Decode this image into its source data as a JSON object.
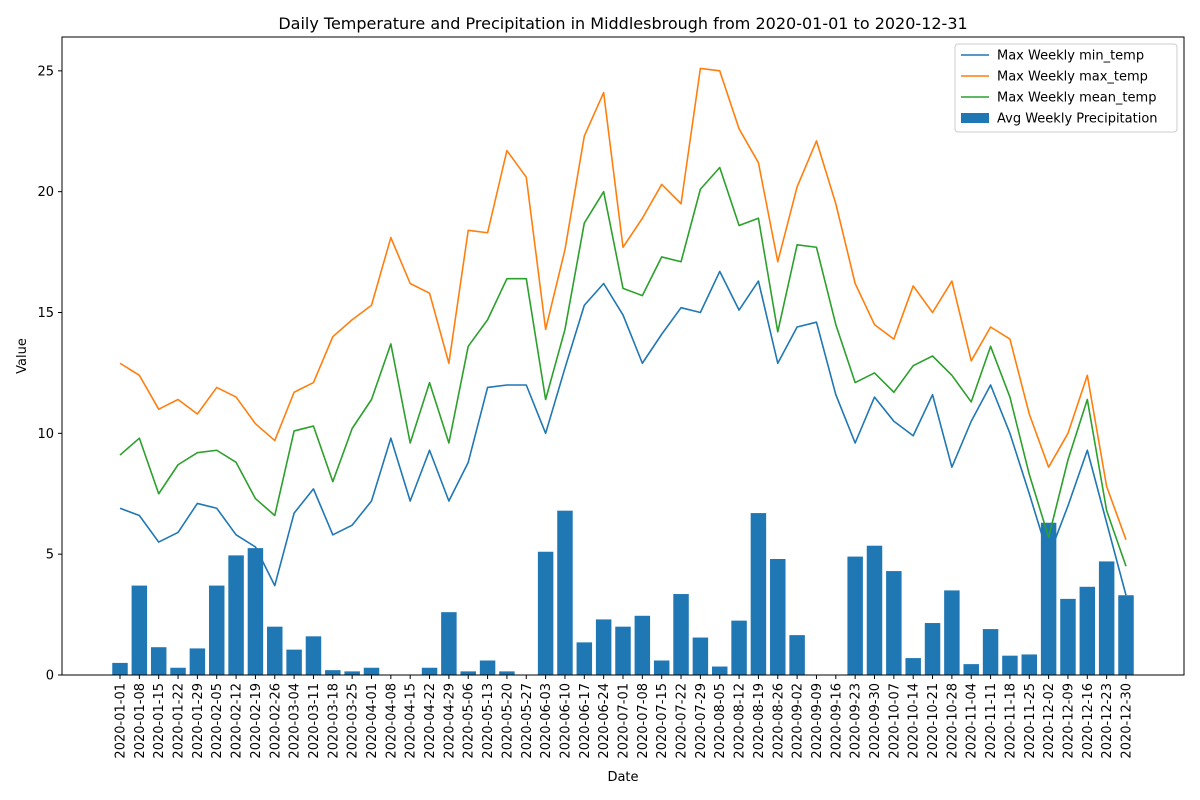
{
  "chart_data": {
    "type": "bar",
    "title": "Daily Temperature and Precipitation in Middlesbrough from 2020-01-01 to 2020-12-31",
    "xlabel": "Date",
    "ylabel": "Value",
    "ylim": [
      0,
      26.4
    ],
    "yticks": [
      0,
      5,
      10,
      15,
      20,
      25
    ],
    "grid": false,
    "legend_position": "upper right",
    "categories": [
      "2020-01-01",
      "2020-01-08",
      "2020-01-15",
      "2020-01-22",
      "2020-01-29",
      "2020-02-05",
      "2020-02-12",
      "2020-02-19",
      "2020-02-26",
      "2020-03-04",
      "2020-03-11",
      "2020-03-18",
      "2020-03-25",
      "2020-04-01",
      "2020-04-08",
      "2020-04-15",
      "2020-04-22",
      "2020-04-29",
      "2020-05-06",
      "2020-05-13",
      "2020-05-20",
      "2020-05-27",
      "2020-06-03",
      "2020-06-10",
      "2020-06-17",
      "2020-06-24",
      "2020-07-01",
      "2020-07-08",
      "2020-07-15",
      "2020-07-22",
      "2020-07-29",
      "2020-08-05",
      "2020-08-12",
      "2020-08-19",
      "2020-08-26",
      "2020-09-02",
      "2020-09-09",
      "2020-09-16",
      "2020-09-23",
      "2020-09-30",
      "2020-10-07",
      "2020-10-14",
      "2020-10-21",
      "2020-10-28",
      "2020-11-04",
      "2020-11-11",
      "2020-11-18",
      "2020-11-25",
      "2020-12-02",
      "2020-12-09",
      "2020-12-16",
      "2020-12-23",
      "2020-12-30"
    ],
    "series": [
      {
        "name": "Max Weekly min_temp",
        "kind": "line",
        "color": "#1f77b4",
        "values": [
          6.9,
          6.6,
          5.5,
          5.9,
          7.1,
          6.9,
          5.8,
          5.3,
          3.7,
          6.7,
          7.7,
          5.8,
          6.2,
          7.2,
          9.8,
          7.2,
          9.3,
          7.2,
          8.8,
          11.9,
          12.0,
          12.0,
          10.0,
          12.7,
          15.3,
          16.2,
          14.9,
          12.9,
          14.1,
          15.2,
          15.0,
          16.7,
          15.1,
          16.3,
          12.9,
          14.4,
          14.6,
          11.6,
          9.6,
          11.5,
          10.5,
          9.9,
          11.6,
          8.6,
          10.5,
          12.0,
          10.0,
          7.5,
          4.9,
          7.0,
          9.3,
          6.3,
          3.3
        ]
      },
      {
        "name": "Max Weekly max_temp",
        "kind": "line",
        "color": "#ff7f0e",
        "values": [
          12.9,
          12.4,
          11.0,
          11.4,
          10.8,
          11.9,
          11.5,
          10.4,
          9.7,
          11.7,
          12.1,
          14.0,
          14.7,
          15.3,
          18.1,
          16.2,
          15.8,
          12.9,
          18.4,
          18.3,
          21.7,
          20.6,
          14.3,
          17.6,
          22.3,
          24.1,
          17.7,
          18.9,
          20.3,
          19.5,
          25.1,
          25.0,
          22.6,
          21.2,
          17.1,
          20.2,
          22.1,
          19.5,
          16.2,
          14.5,
          13.9,
          16.1,
          15.0,
          16.3,
          13.0,
          14.4,
          13.9,
          10.8,
          8.6,
          10.0,
          12.4,
          7.8,
          5.6
        ]
      },
      {
        "name": "Max Weekly mean_temp",
        "kind": "line",
        "color": "#2ca02c",
        "values": [
          9.1,
          9.8,
          7.5,
          8.7,
          9.2,
          9.3,
          8.8,
          7.3,
          6.6,
          10.1,
          10.3,
          8.0,
          10.2,
          11.4,
          13.7,
          9.6,
          12.1,
          9.6,
          13.6,
          14.7,
          16.4,
          16.4,
          11.4,
          14.3,
          18.7,
          20.0,
          16.0,
          15.7,
          17.3,
          17.1,
          20.1,
          21.0,
          18.6,
          18.9,
          14.2,
          17.8,
          17.7,
          14.5,
          12.1,
          12.5,
          11.7,
          12.8,
          13.2,
          12.4,
          11.3,
          13.6,
          11.5,
          8.3,
          5.7,
          8.9,
          11.4,
          6.8,
          4.5
        ]
      },
      {
        "name": "Avg Weekly Precipitation",
        "kind": "bar",
        "color": "#1f77b4",
        "values": [
          0.5,
          3.7,
          1.15,
          0.3,
          1.1,
          3.7,
          4.95,
          5.25,
          2.0,
          1.05,
          1.6,
          0.2,
          0.15,
          0.3,
          0.0,
          0.0,
          0.3,
          2.6,
          0.15,
          0.6,
          0.15,
          0.0,
          5.1,
          6.8,
          1.35,
          2.3,
          2.0,
          2.45,
          0.6,
          3.35,
          1.55,
          0.35,
          2.25,
          6.7,
          4.8,
          1.65,
          0.0,
          0.0,
          4.9,
          5.35,
          4.3,
          0.7,
          2.15,
          3.5,
          0.45,
          1.9,
          0.8,
          0.85,
          6.3,
          3.15,
          3.65,
          4.7,
          3.3
        ]
      }
    ]
  }
}
